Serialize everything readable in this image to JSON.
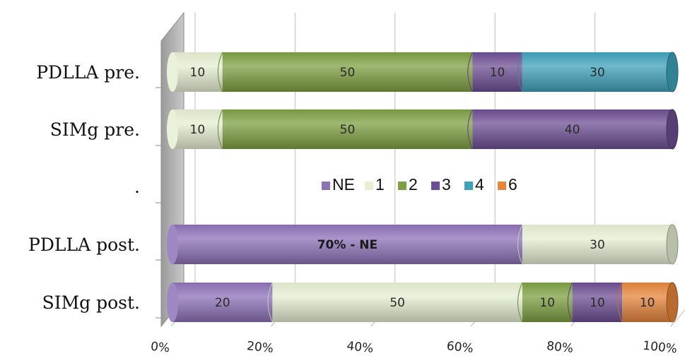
{
  "chart_data": {
    "type": "bar",
    "orientation": "horizontal",
    "stacked": "percent",
    "style": "3d-cylinder",
    "categories": [
      "PDLLA pre.",
      "SIMg pre.",
      ".",
      "PDLLA post.",
      "SIMg post."
    ],
    "series": [
      {
        "name": "NE",
        "color": "#8e72b8",
        "values": [
          0,
          0,
          0,
          70,
          20
        ],
        "labels": [
          "",
          "",
          "",
          "70% - NE",
          "20"
        ]
      },
      {
        "name": "1",
        "color": "#e6efd2",
        "values": [
          10,
          10,
          0,
          30,
          50
        ],
        "labels": [
          "10",
          "10",
          "",
          "30",
          "50"
        ]
      },
      {
        "name": "2",
        "color": "#7ea043",
        "values": [
          50,
          50,
          0,
          0,
          10
        ],
        "labels": [
          "50",
          "50",
          "",
          "",
          "10"
        ]
      },
      {
        "name": "3",
        "color": "#6d4f93",
        "values": [
          10,
          40,
          0,
          0,
          10
        ],
        "labels": [
          "10",
          "40",
          "",
          "",
          "10"
        ]
      },
      {
        "name": "4",
        "color": "#3fa2bb",
        "values": [
          30,
          0,
          0,
          0,
          0
        ],
        "labels": [
          "30",
          "",
          "",
          "",
          ""
        ]
      },
      {
        "name": "6",
        "color": "#e6853b",
        "values": [
          0,
          0,
          0,
          0,
          10
        ],
        "labels": [
          "",
          "",
          "",
          "",
          "10"
        ]
      }
    ],
    "xticks": [
      "0%",
      "20%",
      "40%",
      "60%",
      "80%",
      "100%"
    ],
    "xlim": [
      0,
      100
    ],
    "legend": "inside-center",
    "grid": true
  }
}
